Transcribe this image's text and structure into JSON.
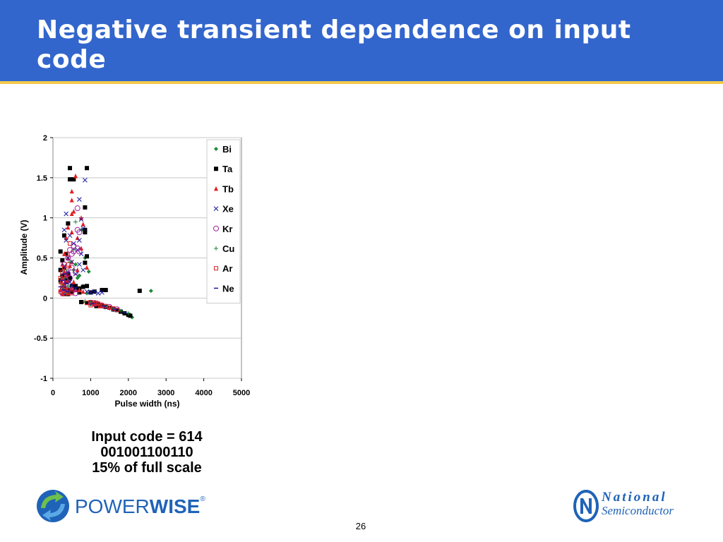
{
  "slide": {
    "title": "Negative transient dependence on input code",
    "caption": [
      "Input code = 614",
      "001001100110",
      "15% of full scale"
    ],
    "page_number": "26"
  },
  "logos": {
    "left": {
      "icon": "powerwise-arrows-icon",
      "text_main": "POWER",
      "text_bold": "WISE",
      "mark": "®"
    },
    "right": {
      "icon": "national-n-logo-icon",
      "line1": "National",
      "line2": "Semiconductor"
    }
  },
  "colors": {
    "header": "#3366cc",
    "header_line": "#f2c94c",
    "logo_blue": "#1f63b8"
  },
  "chart_data": {
    "type": "scatter",
    "title": "",
    "xlabel": "Pulse width (ns)",
    "ylabel": "Amplitude (V)",
    "xlim": [
      0,
      5000
    ],
    "ylim": [
      -1,
      2
    ],
    "xticks": [
      "0",
      "1000",
      "2000",
      "3000",
      "4000",
      "5000"
    ],
    "yticks": [
      "2",
      "1.5",
      "1",
      "0.5",
      "0",
      "-0.5",
      "-1"
    ],
    "grid": "horizontal",
    "legend": "top-right",
    "series": [
      {
        "name": "Bi",
        "marker": "diamond",
        "color": "#1f8a3a",
        "points": [
          [
            2600,
            0.09
          ],
          [
            2100,
            -0.24
          ],
          [
            950,
            0.33
          ],
          [
            600,
            0.42
          ],
          [
            450,
            0.22
          ],
          [
            300,
            0.18
          ],
          [
            350,
            0.07
          ],
          [
            800,
            0.15
          ],
          [
            1800,
            -0.17
          ],
          [
            1500,
            -0.13
          ],
          [
            1200,
            -0.1
          ],
          [
            700,
            0.28
          ],
          [
            400,
            0.12
          ],
          [
            250,
            0.05
          ],
          [
            900,
            0.06
          ],
          [
            1100,
            -0.07
          ],
          [
            800,
            -0.05
          ],
          [
            650,
            0.25
          ],
          [
            550,
            0.35
          ],
          [
            850,
            0.5
          ],
          [
            300,
            0.3
          ],
          [
            2000,
            -0.2
          ],
          [
            1600,
            -0.15
          ],
          [
            1000,
            -0.08
          ],
          [
            760,
            0.85
          ]
        ]
      },
      {
        "name": "Ta",
        "marker": "square",
        "color": "#000000",
        "points": [
          [
            450,
            1.62
          ],
          [
            900,
            1.62
          ],
          [
            450,
            1.48
          ],
          [
            550,
            1.48
          ],
          [
            850,
            1.13
          ],
          [
            850,
            0.85
          ],
          [
            850,
            0.82
          ],
          [
            400,
            0.93
          ],
          [
            300,
            0.78
          ],
          [
            200,
            0.58
          ],
          [
            350,
            0.55
          ],
          [
            900,
            0.52
          ],
          [
            850,
            0.44
          ],
          [
            250,
            0.47
          ],
          [
            300,
            0.38
          ],
          [
            200,
            0.35
          ],
          [
            400,
            0.3
          ],
          [
            350,
            0.22
          ],
          [
            450,
            0.25
          ],
          [
            350,
            0.2
          ],
          [
            500,
            0.15
          ],
          [
            600,
            0.15
          ],
          [
            700,
            0.12
          ],
          [
            800,
            0.14
          ],
          [
            900,
            0.15
          ],
          [
            300,
            0.12
          ],
          [
            400,
            0.1
          ],
          [
            500,
            0.08
          ],
          [
            600,
            0.1
          ],
          [
            700,
            0.07
          ],
          [
            1300,
            0.1
          ],
          [
            1400,
            0.1
          ],
          [
            2300,
            0.09
          ],
          [
            1100,
            0.08
          ],
          [
            1000,
            0.07
          ],
          [
            900,
            -0.06
          ],
          [
            1000,
            -0.06
          ],
          [
            1100,
            -0.07
          ],
          [
            1200,
            -0.08
          ],
          [
            1300,
            -0.1
          ],
          [
            1400,
            -0.11
          ],
          [
            1500,
            -0.12
          ],
          [
            1600,
            -0.14
          ],
          [
            1700,
            -0.15
          ],
          [
            1800,
            -0.17
          ],
          [
            1900,
            -0.19
          ],
          [
            2000,
            -0.21
          ],
          [
            2050,
            -0.22
          ],
          [
            750,
            -0.05
          ],
          [
            1250,
            -0.09
          ],
          [
            200,
            0.22
          ],
          [
            250,
            0.28
          ],
          [
            300,
            0.05
          ],
          [
            400,
            0.05
          ],
          [
            1150,
            -0.1
          ]
        ]
      },
      {
        "name": "Tb",
        "marker": "triangle",
        "color": "#e02020",
        "points": [
          [
            600,
            1.52
          ],
          [
            500,
            1.33
          ],
          [
            500,
            1.22
          ],
          [
            550,
            1.08
          ],
          [
            500,
            1.05
          ],
          [
            750,
            1.0
          ],
          [
            800,
            0.92
          ],
          [
            400,
            0.88
          ],
          [
            500,
            0.82
          ],
          [
            650,
            0.75
          ],
          [
            350,
            0.75
          ],
          [
            750,
            0.62
          ],
          [
            300,
            0.55
          ],
          [
            400,
            0.5
          ],
          [
            500,
            0.45
          ],
          [
            250,
            0.42
          ],
          [
            900,
            0.38
          ],
          [
            300,
            0.33
          ],
          [
            350,
            0.28
          ],
          [
            250,
            0.25
          ],
          [
            400,
            0.22
          ],
          [
            200,
            0.2
          ],
          [
            300,
            0.18
          ],
          [
            250,
            0.15
          ],
          [
            350,
            0.12
          ],
          [
            200,
            0.1
          ],
          [
            300,
            0.08
          ],
          [
            400,
            0.06
          ],
          [
            250,
            0.05
          ],
          [
            500,
            0.12
          ],
          [
            600,
            0.1
          ],
          [
            700,
            0.1
          ],
          [
            800,
            0.08
          ],
          [
            1000,
            -0.06
          ],
          [
            1100,
            -0.07
          ],
          [
            1300,
            -0.1
          ],
          [
            1500,
            -0.12
          ],
          [
            650,
            0.35
          ],
          [
            450,
            0.4
          ],
          [
            550,
            0.2
          ]
        ]
      },
      {
        "name": "Xe",
        "marker": "x",
        "color": "#1a1aa0",
        "points": [
          [
            850,
            1.47
          ],
          [
            700,
            1.23
          ],
          [
            350,
            1.05
          ],
          [
            750,
            0.98
          ],
          [
            300,
            0.85
          ],
          [
            800,
            0.87
          ],
          [
            450,
            0.78
          ],
          [
            350,
            0.72
          ],
          [
            550,
            0.68
          ],
          [
            650,
            0.6
          ],
          [
            750,
            0.55
          ],
          [
            400,
            0.5
          ],
          [
            500,
            0.45
          ],
          [
            700,
            0.42
          ],
          [
            300,
            0.4
          ],
          [
            800,
            0.35
          ],
          [
            400,
            0.32
          ],
          [
            600,
            0.3
          ],
          [
            350,
            0.25
          ],
          [
            450,
            0.2
          ],
          [
            300,
            0.15
          ],
          [
            500,
            0.15
          ],
          [
            600,
            0.12
          ],
          [
            250,
            0.1
          ],
          [
            350,
            0.08
          ],
          [
            900,
            0.08
          ],
          [
            1000,
            0.07
          ],
          [
            1100,
            0.08
          ],
          [
            1200,
            0.06
          ],
          [
            1300,
            0.07
          ],
          [
            1200,
            -0.08
          ],
          [
            1400,
            -0.11
          ],
          [
            1600,
            -0.14
          ],
          [
            950,
            -0.06
          ],
          [
            700,
            0.72
          ]
        ]
      },
      {
        "name": "Kr",
        "marker": "circle",
        "color": "#a020a0",
        "points": [
          [
            650,
            1.12
          ],
          [
            650,
            0.85
          ],
          [
            700,
            0.82
          ],
          [
            550,
            0.65
          ],
          [
            650,
            0.62
          ],
          [
            450,
            0.6
          ],
          [
            550,
            0.58
          ],
          [
            700,
            0.58
          ],
          [
            500,
            0.55
          ],
          [
            400,
            0.5
          ],
          [
            300,
            0.42
          ],
          [
            500,
            0.38
          ],
          [
            350,
            0.35
          ],
          [
            600,
            0.32
          ],
          [
            300,
            0.28
          ],
          [
            450,
            0.25
          ],
          [
            250,
            0.2
          ],
          [
            350,
            0.18
          ],
          [
            400,
            0.12
          ],
          [
            300,
            0.08
          ],
          [
            250,
            0.06
          ],
          [
            500,
            0.08
          ],
          [
            600,
            0.06
          ],
          [
            1100,
            -0.06
          ],
          [
            1300,
            -0.09
          ],
          [
            1500,
            -0.11
          ],
          [
            1700,
            -0.14
          ],
          [
            400,
            0.3
          ]
        ]
      },
      {
        "name": "Cu",
        "marker": "plus",
        "color": "#1f8a3a",
        "points": [
          [
            600,
            0.95
          ],
          [
            550,
            0.6
          ],
          [
            450,
            0.45
          ],
          [
            350,
            0.35
          ],
          [
            300,
            0.25
          ],
          [
            250,
            0.18
          ],
          [
            400,
            0.15
          ],
          [
            300,
            0.12
          ],
          [
            350,
            0.06
          ],
          [
            1000,
            -0.05
          ],
          [
            1200,
            -0.08
          ],
          [
            1400,
            -0.1
          ],
          [
            1600,
            -0.13
          ],
          [
            1800,
            -0.16
          ],
          [
            2000,
            -0.19
          ],
          [
            850,
            -0.04
          ]
        ]
      },
      {
        "name": "Ar",
        "marker": "open-square",
        "color": "#e02020",
        "points": [
          [
            450,
            0.68
          ],
          [
            350,
            0.55
          ],
          [
            400,
            0.42
          ],
          [
            300,
            0.38
          ],
          [
            250,
            0.32
          ],
          [
            350,
            0.28
          ],
          [
            200,
            0.25
          ],
          [
            300,
            0.2
          ],
          [
            250,
            0.15
          ],
          [
            350,
            0.1
          ],
          [
            200,
            0.08
          ],
          [
            300,
            0.05
          ],
          [
            400,
            0.1
          ],
          [
            500,
            0.06
          ],
          [
            900,
            -0.06
          ],
          [
            1000,
            -0.05
          ],
          [
            1100,
            -0.08
          ],
          [
            1200,
            -0.07
          ],
          [
            1300,
            -0.09
          ],
          [
            1400,
            -0.1
          ],
          [
            1500,
            -0.12
          ],
          [
            1600,
            -0.13
          ],
          [
            1700,
            -0.15
          ],
          [
            1000,
            -0.09
          ],
          [
            1150,
            -0.06
          ],
          [
            1250,
            -0.1
          ]
        ]
      },
      {
        "name": "Ne",
        "marker": "dash",
        "color": "#1a1aa0",
        "points": [
          [
            300,
            0.3
          ],
          [
            250,
            0.22
          ],
          [
            350,
            0.18
          ],
          [
            200,
            0.14
          ],
          [
            300,
            0.1
          ],
          [
            400,
            0.08
          ],
          [
            1050,
            -0.07
          ],
          [
            1350,
            -0.1
          ],
          [
            1650,
            -0.14
          ],
          [
            1900,
            -0.18
          ]
        ]
      }
    ]
  }
}
